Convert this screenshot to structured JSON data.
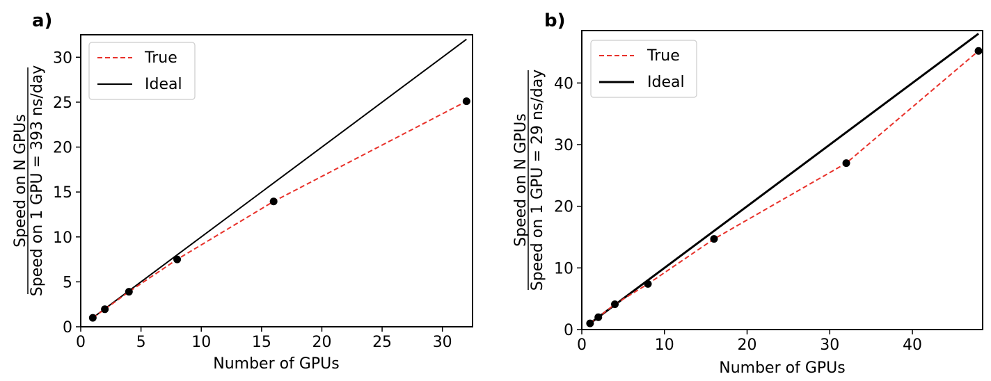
{
  "chart_data": [
    {
      "type": "line",
      "panel_label": "a)",
      "xlabel": "Number of GPUs",
      "ylabel_top": "Speed on N GPUs",
      "ylabel_bottom": "Speed on 1 GPU = 393 ns/day",
      "xlim": [
        0,
        32.5
      ],
      "ylim": [
        0,
        32.5
      ],
      "xticks": [
        0,
        5,
        10,
        15,
        20,
        25,
        30
      ],
      "yticks": [
        0,
        5,
        10,
        15,
        20,
        25,
        30
      ],
      "legend_position": "upper-left",
      "series": [
        {
          "name": "True",
          "style": "dashed",
          "color": "#e8312a",
          "x": [
            1,
            2,
            4,
            8,
            16,
            32
          ],
          "y": [
            1.0,
            1.95,
            3.9,
            7.5,
            13.95,
            25.1
          ]
        },
        {
          "name": "Ideal",
          "style": "solid",
          "color": "#000000",
          "x": [
            1,
            32
          ],
          "y": [
            1,
            32
          ]
        }
      ],
      "markers": {
        "x": [
          1,
          2,
          4,
          8,
          16,
          32
        ],
        "y": [
          1.0,
          1.95,
          3.9,
          7.5,
          13.95,
          25.1
        ],
        "color": "#000000"
      }
    },
    {
      "type": "line",
      "panel_label": "b)",
      "xlabel": "Number of GPUs",
      "ylabel_top": "Speed on N GPUs",
      "ylabel_bottom": "Speed on 1 GPU = 29 ns/day",
      "xlim": [
        0,
        48.5
      ],
      "ylim": [
        0,
        48.5
      ],
      "xticks": [
        0,
        10,
        20,
        30,
        40
      ],
      "yticks": [
        0,
        10,
        20,
        30,
        40
      ],
      "legend_position": "upper-left",
      "series": [
        {
          "name": "True",
          "style": "dashed",
          "color": "#e8312a",
          "x": [
            1,
            2,
            4,
            8,
            16,
            32,
            48
          ],
          "y": [
            1.0,
            2.0,
            4.1,
            7.4,
            14.7,
            27.0,
            45.2
          ]
        },
        {
          "name": "Ideal",
          "style": "solid",
          "color": "#000000",
          "x": [
            1,
            48
          ],
          "y": [
            1,
            48
          ]
        }
      ],
      "markers": {
        "x": [
          1,
          2,
          4,
          8,
          16,
          32,
          48
        ],
        "y": [
          1.0,
          2.0,
          4.1,
          7.4,
          14.7,
          27.0,
          45.2
        ],
        "color": "#000000"
      }
    }
  ]
}
